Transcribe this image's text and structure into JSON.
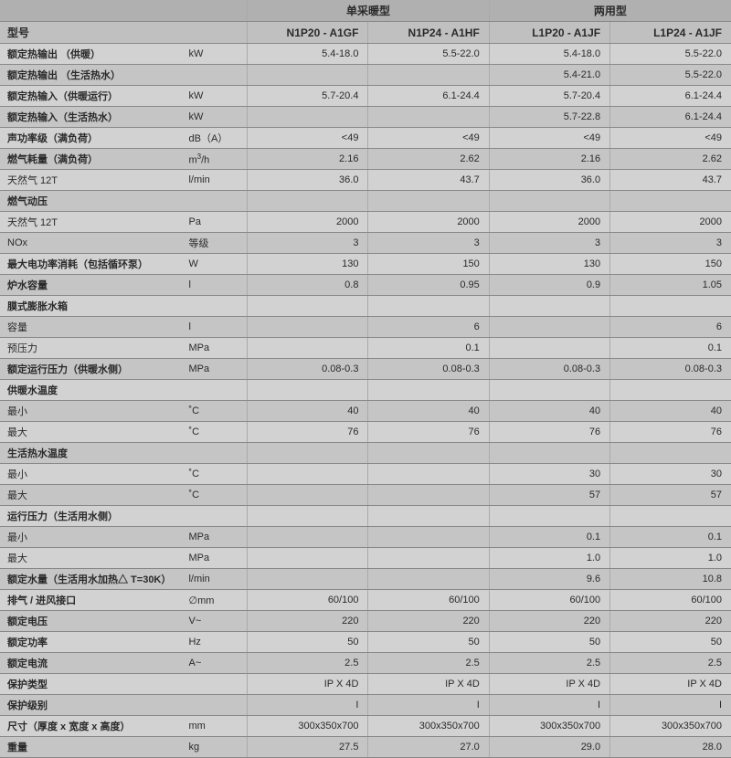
{
  "table": {
    "background_color": "#c9c9c9",
    "even_row_color": "#d2d2d2",
    "odd_row_color": "#c5c5c5",
    "font_family": "Microsoft YaHei",
    "base_font_size": 11,
    "group_headers": {
      "single": "单采暖型",
      "dual": "两用型"
    },
    "model_label": "型号",
    "models": [
      "N1P20 - A1GF",
      "N1P24 - A1HF",
      "L1P20 - A1JF",
      "L1P24 - A1JF"
    ],
    "column_widths": {
      "label": 200,
      "unit": 70,
      "value": 132
    },
    "rows": [
      {
        "label": "额定热输出 （供暖）",
        "unit": "kW",
        "vals": [
          "5.4-18.0",
          "5.5-22.0",
          "5.4-18.0",
          "5.5-22.0"
        ],
        "bold": true
      },
      {
        "label": "额定热输出 （生活热水）",
        "unit": "",
        "vals": [
          "",
          "",
          "5.4-21.0",
          "5.5-22.0"
        ],
        "bold": true
      },
      {
        "label": "额定热输入（供暖运行）",
        "unit": "kW",
        "vals": [
          "5.7-20.4",
          "6.1-24.4",
          "5.7-20.4",
          "6.1-24.4"
        ],
        "bold": true
      },
      {
        "label": "额定热输入（生活热水）",
        "unit": "kW",
        "vals": [
          "",
          "",
          "5.7-22.8",
          "6.1-24.4"
        ],
        "bold": true
      },
      {
        "label": "声功率级（满负荷）",
        "unit": "dB（A）",
        "vals": [
          "<49",
          "<49",
          "<49",
          "<49"
        ],
        "bold": true
      },
      {
        "label": "燃气耗量（满负荷）",
        "unit": "m³/h",
        "vals": [
          "2.16",
          "2.62",
          "2.16",
          "2.62"
        ],
        "bold": true
      },
      {
        "label": "天然气 12T",
        "unit": "l/min",
        "vals": [
          "36.0",
          "43.7",
          "36.0",
          "43.7"
        ],
        "bold": false
      },
      {
        "label": "燃气动压",
        "unit": "",
        "vals": [
          "",
          "",
          "",
          ""
        ],
        "bold": true
      },
      {
        "label": "天然气 12T",
        "unit": "Pa",
        "vals": [
          "2000",
          "2000",
          "2000",
          "2000"
        ],
        "bold": false
      },
      {
        "label": "NOx",
        "unit": "等级",
        "vals": [
          "3",
          "3",
          "3",
          "3"
        ],
        "bold": false
      },
      {
        "label": "最大电功率消耗（包括循环泵）",
        "unit": "W",
        "vals": [
          "130",
          "150",
          "130",
          "150"
        ],
        "bold": true
      },
      {
        "label": "炉水容量",
        "unit": "l",
        "vals": [
          "0.8",
          "0.95",
          "0.9",
          "1.05"
        ],
        "bold": true
      },
      {
        "label": "膜式膨胀水箱",
        "unit": "",
        "vals": [
          "",
          "",
          "",
          ""
        ],
        "bold": true
      },
      {
        "label": "容量",
        "unit": "l",
        "vals": [
          "",
          "6",
          "",
          "6"
        ],
        "bold": false
      },
      {
        "label": "预压力",
        "unit": "MPa",
        "vals": [
          "",
          "0.1",
          "",
          "0.1"
        ],
        "bold": false
      },
      {
        "label": "额定运行压力（供暖水侧）",
        "unit": "MPa",
        "vals": [
          "0.08-0.3",
          "0.08-0.3",
          "0.08-0.3",
          "0.08-0.3"
        ],
        "bold": true
      },
      {
        "label": "供暖水温度",
        "unit": "",
        "vals": [
          "",
          "",
          "",
          ""
        ],
        "bold": true
      },
      {
        "label": "最小",
        "unit": "˚C",
        "vals": [
          "40",
          "40",
          "40",
          "40"
        ],
        "bold": false
      },
      {
        "label": "最大",
        "unit": "˚C",
        "vals": [
          "76",
          "76",
          "76",
          "76"
        ],
        "bold": false
      },
      {
        "label": "生活热水温度",
        "unit": "",
        "vals": [
          "",
          "",
          "",
          ""
        ],
        "bold": true
      },
      {
        "label": "最小",
        "unit": "˚C",
        "vals": [
          "",
          "",
          "30",
          "30"
        ],
        "bold": false
      },
      {
        "label": "最大",
        "unit": "˚C",
        "vals": [
          "",
          "",
          "57",
          "57"
        ],
        "bold": false
      },
      {
        "label": "运行压力（生活用水侧）",
        "unit": "",
        "vals": [
          "",
          "",
          "",
          ""
        ],
        "bold": true
      },
      {
        "label": "最小",
        "unit": "MPa",
        "vals": [
          "",
          "",
          "0.1",
          "0.1"
        ],
        "bold": false
      },
      {
        "label": "最大",
        "unit": "MPa",
        "vals": [
          "",
          "",
          "1.0",
          "1.0"
        ],
        "bold": false
      },
      {
        "label": "额定水量（生活用水加热△ T=30K）",
        "unit": "l/min",
        "vals": [
          "",
          "",
          "9.6",
          "10.8"
        ],
        "bold": true
      },
      {
        "label": "排气 / 进风接口",
        "unit": "∅mm",
        "vals": [
          "60/100",
          "60/100",
          "60/100",
          "60/100"
        ],
        "bold": true
      },
      {
        "label": "额定电压",
        "unit": "V~",
        "vals": [
          "220",
          "220",
          "220",
          "220"
        ],
        "bold": true
      },
      {
        "label": "额定功率",
        "unit": "Hz",
        "vals": [
          "50",
          "50",
          "50",
          "50"
        ],
        "bold": true
      },
      {
        "label": "额定电流",
        "unit": "A~",
        "vals": [
          "2.5",
          "2.5",
          "2.5",
          "2.5"
        ],
        "bold": true
      },
      {
        "label": "保护类型",
        "unit": "",
        "vals": [
          "IP X 4D",
          "IP X 4D",
          "IP X 4D",
          "IP X 4D"
        ],
        "bold": true
      },
      {
        "label": "保护级别",
        "unit": "",
        "vals": [
          "I",
          "I",
          "I",
          "I"
        ],
        "bold": true
      },
      {
        "label": "尺寸（厚度 x 宽度 x 高度）",
        "unit": "mm",
        "vals": [
          "300x350x700",
          "300x350x700",
          "300x350x700",
          "300x350x700"
        ],
        "bold": true
      },
      {
        "label": "重量",
        "unit": "kg",
        "vals": [
          "27.5",
          "27.0",
          "29.0",
          "28.0"
        ],
        "bold": true
      }
    ]
  }
}
